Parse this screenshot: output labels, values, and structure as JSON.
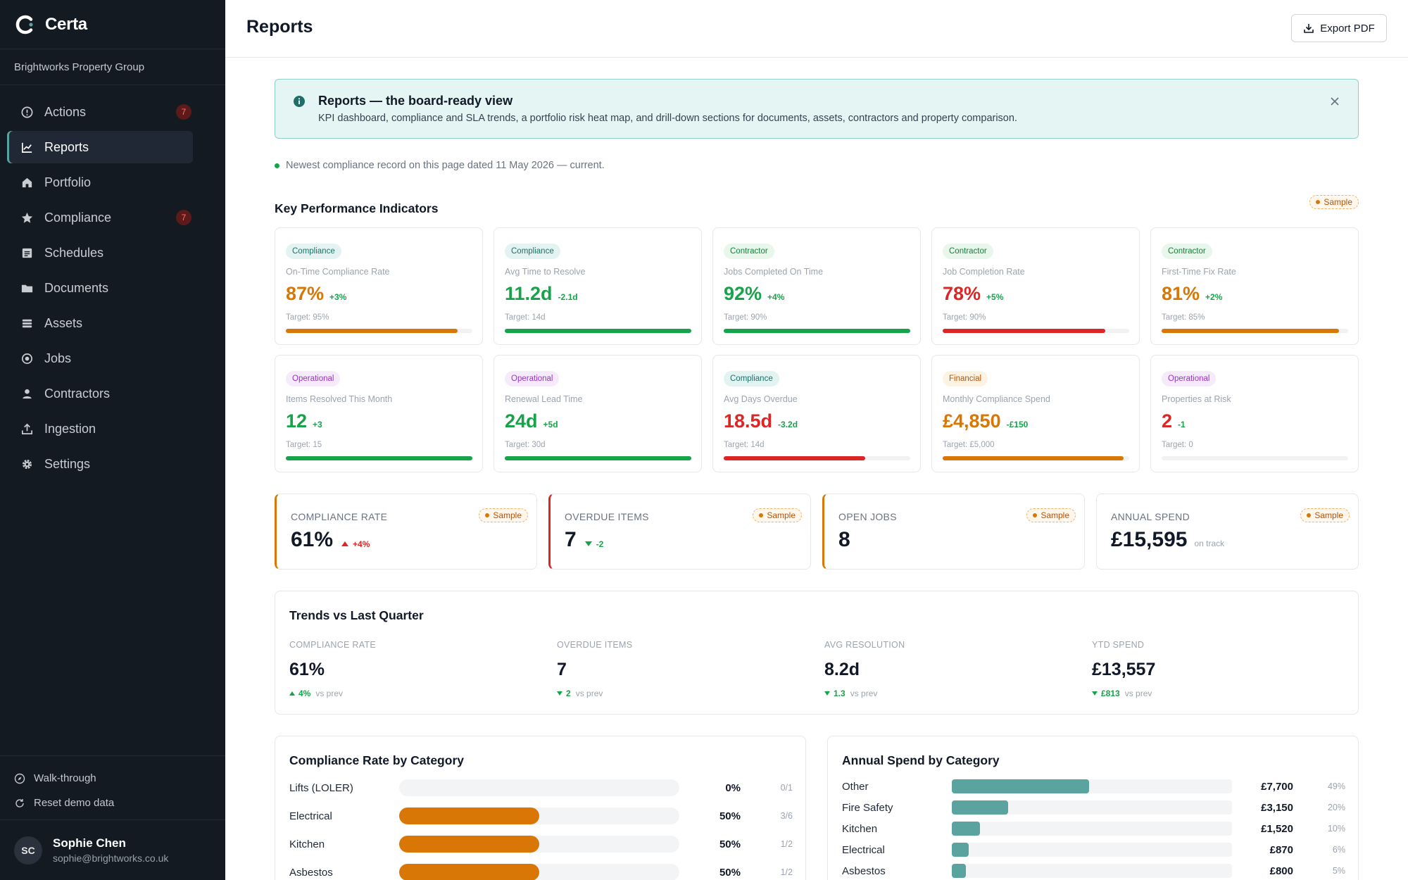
{
  "app": {
    "name": "Certa",
    "org": "Brightworks Property Group"
  },
  "nav": [
    {
      "label": "Actions",
      "icon": "alert-circle-icon",
      "badge": "7"
    },
    {
      "label": "Reports",
      "icon": "chart-line-icon",
      "badge": null,
      "active": true
    },
    {
      "label": "Portfolio",
      "icon": "home-icon",
      "badge": null
    },
    {
      "label": "Compliance",
      "icon": "star-icon",
      "badge": "7"
    },
    {
      "label": "Schedules",
      "icon": "list-icon",
      "badge": null
    },
    {
      "label": "Documents",
      "icon": "folder-icon",
      "badge": null
    },
    {
      "label": "Assets",
      "icon": "layers-icon",
      "badge": null
    },
    {
      "label": "Jobs",
      "icon": "target-icon",
      "badge": null
    },
    {
      "label": "Contractors",
      "icon": "person-icon",
      "badge": null
    },
    {
      "label": "Ingestion",
      "icon": "upload-icon",
      "badge": null
    },
    {
      "label": "Settings",
      "icon": "gear-icon",
      "badge": null
    }
  ],
  "sidebar_footer": {
    "walkthrough": "Walk-through",
    "reset": "Reset demo data"
  },
  "user": {
    "initials": "SC",
    "name": "Sophie Chen",
    "email": "sophie@brightworks.co.uk"
  },
  "header": {
    "title": "Reports",
    "export_label": "Export PDF"
  },
  "banner": {
    "title": "Reports — the board-ready view",
    "text": "KPI dashboard, compliance and SLA trends, a portfolio risk heat map, and drill-down sections for documents, assets, contractors and property comparison."
  },
  "freshness": "Newest compliance record on this page dated 11 May 2026 — current.",
  "kpi_section": {
    "title": "Key Performance Indicators",
    "sample_label": "Sample"
  },
  "kpis": [
    {
      "tag": "Compliance",
      "tag_type": "compliance",
      "label": "On-Time Compliance Rate",
      "value": "87%",
      "delta": "+3%",
      "target": "Target: 95%",
      "progress": 0.92,
      "status": "orange"
    },
    {
      "tag": "Compliance",
      "tag_type": "compliance",
      "label": "Avg Time to Resolve",
      "value": "11.2d",
      "delta": "-2.1d",
      "target": "Target: 14d",
      "progress": 1.0,
      "status": "green"
    },
    {
      "tag": "Contractor",
      "tag_type": "contractor",
      "label": "Jobs Completed On Time",
      "value": "92%",
      "delta": "+4%",
      "target": "Target: 90%",
      "progress": 1.0,
      "status": "green"
    },
    {
      "tag": "Contractor",
      "tag_type": "contractor",
      "label": "Job Completion Rate",
      "value": "78%",
      "delta": "+5%",
      "target": "Target: 90%",
      "progress": 0.87,
      "status": "red"
    },
    {
      "tag": "Contractor",
      "tag_type": "contractor",
      "label": "First-Time Fix Rate",
      "value": "81%",
      "delta": "+2%",
      "target": "Target: 85%",
      "progress": 0.95,
      "status": "orange"
    },
    {
      "tag": "Operational",
      "tag_type": "operational",
      "label": "Items Resolved This Month",
      "value": "12",
      "delta": "+3",
      "target": "Target: 15",
      "progress": 1.0,
      "status": "green"
    },
    {
      "tag": "Operational",
      "tag_type": "operational",
      "label": "Renewal Lead Time",
      "value": "24d",
      "delta": "+5d",
      "target": "Target: 30d",
      "progress": 1.0,
      "status": "green"
    },
    {
      "tag": "Compliance",
      "tag_type": "compliance",
      "label": "Avg Days Overdue",
      "value": "18.5d",
      "delta": "-3.2d",
      "target": "Target: 14d",
      "progress": 0.76,
      "status": "red"
    },
    {
      "tag": "Financial",
      "tag_type": "financial",
      "label": "Monthly Compliance Spend",
      "value": "£4,850",
      "delta": "-£150",
      "target": "Target: £5,000",
      "progress": 0.97,
      "status": "orange"
    },
    {
      "tag": "Operational",
      "tag_type": "operational",
      "label": "Properties at Risk",
      "value": "2",
      "delta": "-1",
      "target": "Target: 0",
      "progress": 0.0,
      "status": "red"
    }
  ],
  "summary": [
    {
      "label": "COMPLIANCE RATE",
      "value": "61%",
      "delta": "+4%",
      "direction": "up",
      "sub": "",
      "accent": "orange",
      "sample": "Sample"
    },
    {
      "label": "OVERDUE ITEMS",
      "value": "7",
      "delta": "-2",
      "direction": "down",
      "sub": "",
      "accent": "red",
      "sample": "Sample"
    },
    {
      "label": "OPEN JOBS",
      "value": "8",
      "delta": "",
      "direction": "",
      "sub": "",
      "accent": "orange",
      "sample": "Sample"
    },
    {
      "label": "ANNUAL SPEND",
      "value": "£15,595",
      "delta": "",
      "direction": "",
      "sub": "on track",
      "accent": "none",
      "sample": "Sample"
    }
  ],
  "trends": {
    "title": "Trends vs Last Quarter",
    "items": [
      {
        "label": "COMPLIANCE RATE",
        "value": "61%",
        "delta": "4%",
        "direction": "up",
        "vs": "vs prev"
      },
      {
        "label": "OVERDUE ITEMS",
        "value": "7",
        "delta": "2",
        "direction": "down",
        "vs": "vs prev"
      },
      {
        "label": "AVG RESOLUTION",
        "value": "8.2d",
        "delta": "1.3",
        "direction": "down",
        "vs": "vs prev"
      },
      {
        "label": "YTD SPEND",
        "value": "£13,557",
        "delta": "£813",
        "direction": "down",
        "vs": "vs prev"
      }
    ]
  },
  "compliance_by_category": {
    "title": "Compliance Rate by Category",
    "rows": [
      {
        "label": "Lifts (LOLER)",
        "value": "0%",
        "fraction": "0/1",
        "pct": 0
      },
      {
        "label": "Electrical",
        "value": "50%",
        "fraction": "3/6",
        "pct": 0.5
      },
      {
        "label": "Kitchen",
        "value": "50%",
        "fraction": "1/2",
        "pct": 0.5
      },
      {
        "label": "Asbestos",
        "value": "50%",
        "fraction": "1/2",
        "pct": 0.5
      }
    ]
  },
  "spend_by_category": {
    "title": "Annual Spend by Category",
    "rows": [
      {
        "label": "Other",
        "value": "£7,700",
        "share": "49%",
        "pct": 0.49
      },
      {
        "label": "Fire Safety",
        "value": "£3,150",
        "share": "20%",
        "pct": 0.2
      },
      {
        "label": "Kitchen",
        "value": "£1,520",
        "share": "10%",
        "pct": 0.1
      },
      {
        "label": "Electrical",
        "value": "£870",
        "share": "6%",
        "pct": 0.06
      },
      {
        "label": "Asbestos",
        "value": "£800",
        "share": "5%",
        "pct": 0.05
      }
    ]
  },
  "colors": {
    "accent": "#5aa39f",
    "orange": "#d97706",
    "green": "#16a34a",
    "red": "#dc2626",
    "sidebar": "#141a22"
  }
}
